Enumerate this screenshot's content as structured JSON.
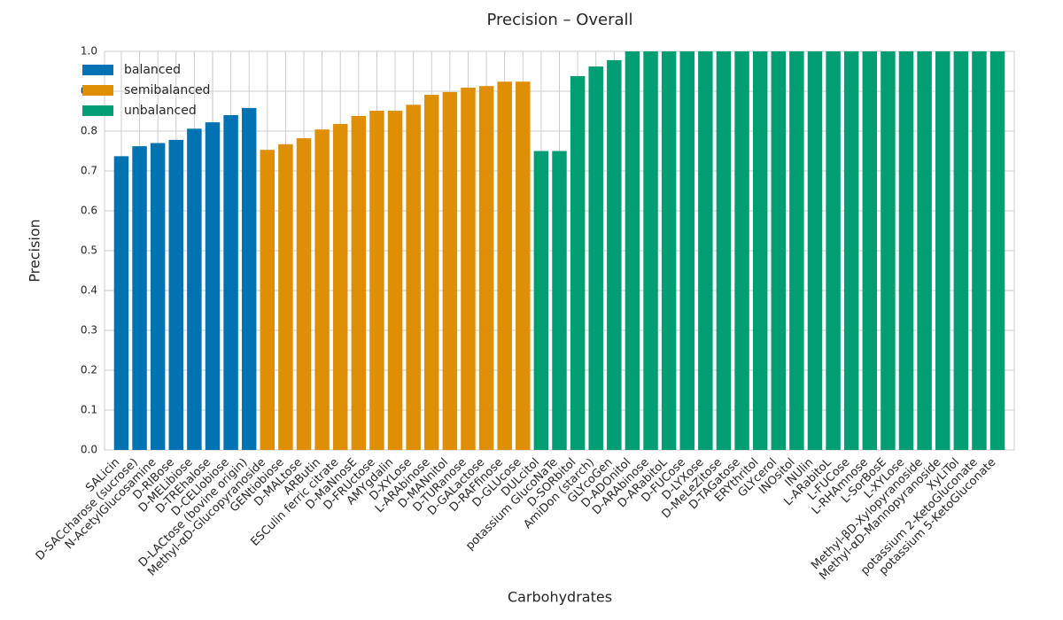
{
  "chart_data": {
    "type": "bar",
    "title": "Precision – Overall",
    "xlabel": "Carbohydrates",
    "ylabel": "Precision",
    "categories": [
      "SALicin",
      "D-SACcharose (sucrose)",
      "N-AcetylGlucosamine",
      "D-RIBose",
      "D-MELibiose",
      "D-TREhalose",
      "D-CELlobiose",
      "D-LACtose (bovine origin)",
      "Methyl-αD-Glucopyranoside",
      "GENtiobiose",
      "D-MALtose",
      "ARButin",
      "ESCulin ferric citrate",
      "D-MaNnosE",
      "D-FRUctose",
      "AMYgdalin",
      "D-XYLose",
      "L-ARAbinose",
      "D-MANnitol",
      "D-TURanose",
      "D-GALactose",
      "D-RAFfinose",
      "D-GLUcose",
      "DULcitol",
      "potassium GlucoNaTe",
      "D-SORbitol",
      "AmiDon (starch)",
      "GLYcoGen",
      "D-ADOnitol",
      "D-ARAbinose",
      "D-ARabitoL",
      "D-FUCose",
      "D-LYXose",
      "D-MeLeZitose",
      "D-TAGatose",
      "ERYthritol",
      "GLYcerol",
      "INOsitol",
      "INUlin",
      "L-ARabitoL",
      "L-FUCose",
      "L-RHAmnose",
      "L-SorBosE",
      "L-XYLose",
      "Methyl-βD-Xylopyranoside",
      "Methyl-αD-Mannopyranoside",
      "XyLiTol",
      "potassium 2-KetoGluconate",
      "potassium 5-KetoGluconate"
    ],
    "series": [
      {
        "name": "balanced",
        "color": "#0173b2",
        "values": [
          0.737,
          0.762,
          0.77,
          0.778,
          0.806,
          0.822,
          0.84,
          0.858,
          null,
          null,
          null,
          null,
          null,
          null,
          null,
          null,
          null,
          null,
          null,
          null,
          null,
          null,
          null,
          null,
          null,
          null,
          null,
          null,
          null,
          null,
          null,
          null,
          null,
          null,
          null,
          null,
          null,
          null,
          null,
          null,
          null,
          null,
          null,
          null,
          null,
          null,
          null,
          null,
          null
        ]
      },
      {
        "name": "semibalanced",
        "color": "#de8f05",
        "values": [
          null,
          null,
          null,
          null,
          null,
          null,
          null,
          null,
          0.753,
          0.767,
          0.782,
          0.804,
          0.818,
          0.838,
          0.851,
          0.851,
          0.866,
          0.891,
          0.898,
          0.909,
          0.913,
          0.924,
          0.924,
          null,
          null,
          null,
          null,
          null,
          null,
          null,
          null,
          null,
          null,
          null,
          null,
          null,
          null,
          null,
          null,
          null,
          null,
          null,
          null,
          null,
          null,
          null,
          null,
          null,
          null
        ]
      },
      {
        "name": "unbalanced",
        "color": "#029e73",
        "values": [
          null,
          null,
          null,
          null,
          null,
          null,
          null,
          null,
          null,
          null,
          null,
          null,
          null,
          null,
          null,
          null,
          null,
          null,
          null,
          null,
          null,
          null,
          null,
          0.75,
          0.75,
          0.938,
          0.962,
          0.978,
          1,
          1,
          1,
          1,
          1,
          1,
          1,
          1,
          1,
          1,
          1,
          1,
          1,
          1,
          1,
          1,
          1,
          1,
          1,
          1,
          1
        ]
      }
    ],
    "ylim": [
      0,
      1
    ],
    "yticks": [
      {
        "value": 0,
        "label": "0.0"
      },
      0.1,
      0.2,
      0.3,
      0.4,
      0.5,
      0.6,
      0.7,
      0.8,
      0.9,
      {
        "value": 1,
        "label": "1.0"
      }
    ],
    "grid": true,
    "legend": "upper left"
  }
}
